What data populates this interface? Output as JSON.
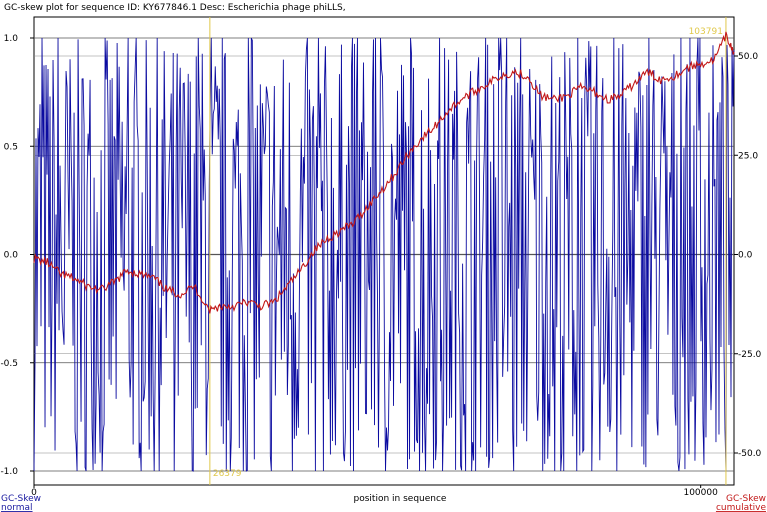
{
  "title": "GC-skew plot for sequence ID: KY677846.1 Desc: Escherichia phage phiLLS,",
  "colors": {
    "normal": "#0b0ba0",
    "cumulative": "#c21818",
    "marker": "#e0c84a",
    "grid": "#555555",
    "axis": "#000000"
  },
  "chart_data": {
    "type": "line",
    "xlabel": "position in sequence",
    "xlim": [
      0,
      105000
    ],
    "x_ticks": [
      {
        "value": 0,
        "label": "0"
      },
      {
        "value": 100000,
        "label": "100000"
      }
    ],
    "left_axis": {
      "ylim": [
        -1.0,
        1.0
      ],
      "ticks": [
        "1.0",
        "0.5",
        "0.0",
        "-0.5",
        "-1.0"
      ],
      "tick_values": [
        1.0,
        0.5,
        0.0,
        -0.5,
        -1.0
      ],
      "label_line1": "GC-Skew",
      "label_line2": "normal"
    },
    "right_axis": {
      "ylim": [
        -55,
        55
      ],
      "ticks": [
        "50.0",
        "25.0",
        "0.0",
        "-25.0",
        "-50.0"
      ],
      "tick_values": [
        50,
        25,
        0,
        -25,
        -50
      ],
      "label_line1": "GC-Skew",
      "label_line2": "cumulative"
    },
    "markers": [
      {
        "position": 26379,
        "label": "26379",
        "kind": "minimum"
      },
      {
        "position": 103791,
        "label": "103791",
        "kind": "maximum"
      }
    ],
    "series": [
      {
        "axis": "right",
        "x": [
          0,
          2000,
          4000,
          6000,
          8000,
          10000,
          12000,
          14000,
          16000,
          18000,
          20000,
          22000,
          24000,
          26379,
          28000,
          30000,
          32000,
          34000,
          36000,
          38000,
          40000,
          42000,
          44000,
          46000,
          48000,
          50000,
          52000,
          54000,
          56000,
          58000,
          60000,
          62000,
          64000,
          66000,
          68000,
          70000,
          72000,
          74000,
          76000,
          78000,
          80000,
          82000,
          84000,
          86000,
          88000,
          90000,
          92000,
          94000,
          96000,
          98000,
          100000,
          102000,
          103791,
          105000
        ],
        "y": [
          -1,
          -2,
          -5,
          -6,
          -8,
          -9,
          -7,
          -4,
          -5,
          -6,
          -9,
          -10,
          -8,
          -14,
          -13,
          -13,
          -12,
          -13,
          -12,
          -8,
          -4,
          1,
          4,
          6,
          8,
          12,
          16,
          20,
          25,
          29,
          32,
          36,
          39,
          41,
          43,
          45,
          46,
          45,
          40,
          39,
          40,
          42,
          41,
          39,
          40,
          43,
          46,
          44,
          45,
          47,
          48,
          49,
          55,
          51
        ]
      },
      {
        "axis": "left",
        "style": "spiky",
        "bins": 700,
        "seed": 7,
        "x_start": 0,
        "x_end": 105000,
        "y_range": [
          -1.0,
          1.0
        ]
      }
    ]
  }
}
